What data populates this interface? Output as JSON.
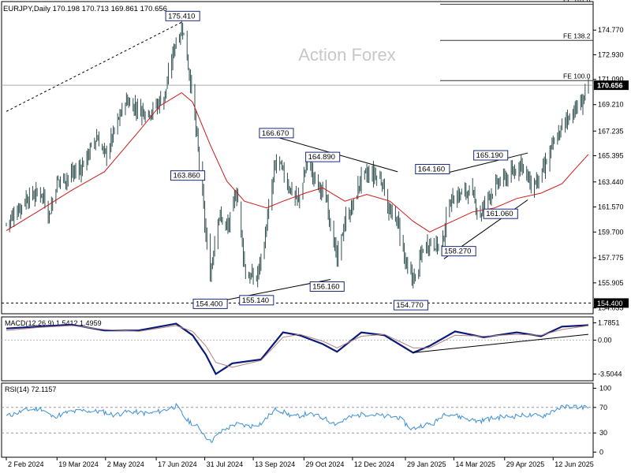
{
  "header": {
    "symbol": "EURJPY,Daily",
    "ohlc": "170.198 170.713 169.861 170.656"
  },
  "watermark": "Action Forex",
  "colors": {
    "candle": "#2f4f4f",
    "ma": "#d01818",
    "trendline": "#000000",
    "macd_line": "#0a1a7a",
    "macd_signal": "#b08080",
    "rsi": "#3b8fd8",
    "grid": "#d0d0d0"
  },
  "chart_data": [
    {
      "type": "candlestick",
      "panel": "price",
      "y_ticks": [
        "174.770",
        "172.930",
        "171.090",
        "169.210",
        "167.235",
        "165.395",
        "163.440",
        "161.570",
        "159.700",
        "157.775",
        "155.905",
        "154.035"
      ],
      "ylim": [
        153.6,
        176.9
      ],
      "last_price_label": "170.656",
      "horizontal_level_label": "154.400",
      "fib_extensions": [
        {
          "label": "FE 161.8",
          "value": 176.7
        },
        {
          "label": "FE 138.2",
          "value": 174.0
        },
        {
          "label": "FE 100.0",
          "value": 171.0
        }
      ],
      "annotations": [
        {
          "label": "175.410",
          "date": "2024-07-11",
          "value": 175.41
        },
        {
          "label": "163.860",
          "date": "2024-07-31",
          "value": 163.86
        },
        {
          "label": "154.400",
          "date": "2024-08-05",
          "value": 154.4
        },
        {
          "label": "155.140",
          "date": "2024-09-16",
          "value": 155.14
        },
        {
          "label": "166.670",
          "date": "2024-10-04",
          "value": 166.67
        },
        {
          "label": "164.890",
          "date": "2024-11-15",
          "value": 164.89
        },
        {
          "label": "156.160",
          "date": "2024-11-19",
          "value": 156.16
        },
        {
          "label": "154.770",
          "date": "2025-02-03",
          "value": 154.77
        },
        {
          "label": "164.160",
          "date": "2025-03-10",
          "value": 164.16
        },
        {
          "label": "158.270",
          "date": "2025-03-03",
          "value": 158.27
        },
        {
          "label": "165.190",
          "date": "2025-04-01",
          "value": 165.19
        },
        {
          "label": "161.060",
          "date": "2025-04-10",
          "value": 161.06
        }
      ],
      "price_path": [
        [
          "2024-02-02",
          160.3
        ],
        [
          "2024-02-20",
          162.2
        ],
        [
          "2024-03-05",
          162.7
        ],
        [
          "2024-03-12",
          161.0
        ],
        [
          "2024-03-19",
          163.5
        ],
        [
          "2024-03-28",
          163.8
        ],
        [
          "2024-04-10",
          164.5
        ],
        [
          "2024-04-24",
          166.8
        ],
        [
          "2024-05-02",
          165.4
        ],
        [
          "2024-05-20",
          169.5
        ],
        [
          "2024-06-03",
          168.8
        ],
        [
          "2024-06-13",
          168.7
        ],
        [
          "2024-06-25",
          170.0
        ],
        [
          "2024-07-04",
          173.8
        ],
        [
          "2024-07-11",
          175.0
        ],
        [
          "2024-07-19",
          170.4
        ],
        [
          "2024-07-26",
          165.0
        ],
        [
          "2024-08-02",
          158.5
        ],
        [
          "2024-08-05",
          156.5
        ],
        [
          "2024-08-12",
          161.0
        ],
        [
          "2024-08-21",
          160.0
        ],
        [
          "2024-08-29",
          162.8
        ],
        [
          "2024-09-06",
          156.5
        ],
        [
          "2024-09-16",
          156.2
        ],
        [
          "2024-09-23",
          159.0
        ],
        [
          "2024-09-30",
          163.0
        ],
        [
          "2024-10-04",
          165.2
        ],
        [
          "2024-10-16",
          163.0
        ],
        [
          "2024-10-24",
          162.0
        ],
        [
          "2024-11-01",
          165.0
        ],
        [
          "2024-11-08",
          163.6
        ],
        [
          "2024-11-19",
          162.0
        ],
        [
          "2024-11-28",
          157.5
        ],
        [
          "2024-12-05",
          160.5
        ],
        [
          "2024-12-13",
          161.8
        ],
        [
          "2024-12-20",
          163.8
        ],
        [
          "2024-12-31",
          164.0
        ],
        [
          "2025-01-08",
          163.5
        ],
        [
          "2025-01-15",
          161.0
        ],
        [
          "2025-01-22",
          160.5
        ],
        [
          "2025-01-31",
          156.6
        ],
        [
          "2025-02-07",
          156.2
        ],
        [
          "2025-02-14",
          158.5
        ],
        [
          "2025-02-21",
          159.0
        ],
        [
          "2025-03-03",
          158.5
        ],
        [
          "2025-03-10",
          162.0
        ],
        [
          "2025-03-19",
          162.5
        ],
        [
          "2025-03-28",
          162.8
        ],
        [
          "2025-04-07",
          161.0
        ],
        [
          "2025-04-15",
          162.5
        ],
        [
          "2025-04-25",
          163.5
        ],
        [
          "2025-05-06",
          164.0
        ],
        [
          "2025-05-14",
          165.0
        ],
        [
          "2025-05-23",
          163.0
        ],
        [
          "2025-06-02",
          164.0
        ],
        [
          "2025-06-11",
          166.0
        ],
        [
          "2025-06-20",
          167.5
        ],
        [
          "2025-06-27",
          168.5
        ],
        [
          "2025-07-07",
          169.2
        ],
        [
          "2025-07-14",
          170.66
        ]
      ],
      "moving_average": [
        [
          "2024-02-02",
          159.8
        ],
        [
          "2024-03-01",
          161.2
        ],
        [
          "2024-04-01",
          162.8
        ],
        [
          "2024-05-01",
          164.2
        ],
        [
          "2024-06-01",
          167.2
        ],
        [
          "2024-06-20",
          169.1
        ],
        [
          "2024-07-10",
          170.1
        ],
        [
          "2024-07-20",
          169.4
        ],
        [
          "2024-08-05",
          166.2
        ],
        [
          "2024-08-20",
          163.5
        ],
        [
          "2024-09-05",
          162.0
        ],
        [
          "2024-09-25",
          161.5
        ],
        [
          "2024-10-10",
          162.0
        ],
        [
          "2024-10-30",
          162.6
        ],
        [
          "2024-11-15",
          163.0
        ],
        [
          "2024-12-05",
          162.0
        ],
        [
          "2024-12-25",
          162.5
        ],
        [
          "2025-01-15",
          162.0
        ],
        [
          "2025-02-05",
          160.5
        ],
        [
          "2025-02-20",
          159.7
        ],
        [
          "2025-03-10",
          160.4
        ],
        [
          "2025-03-31",
          161.2
        ],
        [
          "2025-04-20",
          161.5
        ],
        [
          "2025-05-10",
          162.2
        ],
        [
          "2025-06-01",
          162.6
        ],
        [
          "2025-06-20",
          163.3
        ],
        [
          "2025-07-03",
          164.5
        ],
        [
          "2025-07-14",
          165.5
        ]
      ],
      "trendlines": [
        {
          "style": "dashed",
          "points": [
            [
              "2024-02-02",
              168.7
            ],
            [
              "2024-07-11",
              175.4
            ]
          ]
        },
        {
          "style": "solid",
          "points": [
            [
              "2024-08-05",
              154.4
            ],
            [
              "2024-11-22",
              156.16
            ]
          ]
        },
        {
          "style": "solid",
          "points": [
            [
              "2024-09-25",
              167.0
            ],
            [
              "2025-01-22",
              164.2
            ]
          ]
        },
        {
          "style": "solid",
          "points": [
            [
              "2025-03-10",
              164.16
            ],
            [
              "2025-05-20",
              165.6
            ]
          ]
        },
        {
          "style": "solid",
          "points": [
            [
              "2025-03-05",
              157.7
            ],
            [
              "2025-05-20",
              162.1
            ]
          ]
        }
      ]
    },
    {
      "type": "line",
      "panel": "macd",
      "title": "MACD(12,26,9) 1.5412 1.4959",
      "y_ticks": [
        "1.7851",
        "0.00",
        "-3.5044"
      ],
      "ylim": [
        -4.2,
        2.4
      ],
      "zero": 0,
      "series": [
        {
          "role": "macd",
          "values": [
            [
              "2024-02-02",
              1.2
            ],
            [
              "2024-03-01",
              1.4
            ],
            [
              "2024-04-01",
              1.6
            ],
            [
              "2024-05-01",
              1.0
            ],
            [
              "2024-06-01",
              1.0
            ],
            [
              "2024-07-05",
              1.7
            ],
            [
              "2024-07-20",
              0.5
            ],
            [
              "2024-08-01",
              -1.5
            ],
            [
              "2024-08-10",
              -3.5
            ],
            [
              "2024-08-25",
              -2.4
            ],
            [
              "2024-09-20",
              -2.0
            ],
            [
              "2024-10-10",
              0.8
            ],
            [
              "2024-10-25",
              0.5
            ],
            [
              "2024-11-15",
              -0.4
            ],
            [
              "2024-11-28",
              -1.2
            ],
            [
              "2024-12-20",
              0.8
            ],
            [
              "2025-01-10",
              0.5
            ],
            [
              "2025-02-05",
              -1.3
            ],
            [
              "2025-02-20",
              -0.6
            ],
            [
              "2025-03-15",
              0.9
            ],
            [
              "2025-04-10",
              0.3
            ],
            [
              "2025-05-10",
              0.8
            ],
            [
              "2025-06-01",
              0.4
            ],
            [
              "2025-06-20",
              1.4
            ],
            [
              "2025-07-14",
              1.5412
            ]
          ]
        },
        {
          "role": "signal",
          "values": [
            [
              "2024-02-02",
              1.0
            ],
            [
              "2024-03-01",
              1.3
            ],
            [
              "2024-04-01",
              1.5
            ],
            [
              "2024-05-01",
              1.1
            ],
            [
              "2024-06-01",
              0.9
            ],
            [
              "2024-07-05",
              1.5
            ],
            [
              "2024-07-20",
              0.9
            ],
            [
              "2024-08-01",
              -0.6
            ],
            [
              "2024-08-10",
              -2.3
            ],
            [
              "2024-08-25",
              -2.8
            ],
            [
              "2024-09-20",
              -2.1
            ],
            [
              "2024-10-10",
              0.3
            ],
            [
              "2024-10-25",
              0.6
            ],
            [
              "2024-11-15",
              -0.1
            ],
            [
              "2024-11-28",
              -0.8
            ],
            [
              "2024-12-20",
              0.4
            ],
            [
              "2025-01-10",
              0.6
            ],
            [
              "2025-02-05",
              -0.8
            ],
            [
              "2025-02-20",
              -0.8
            ],
            [
              "2025-03-15",
              0.5
            ],
            [
              "2025-04-10",
              0.4
            ],
            [
              "2025-05-10",
              0.6
            ],
            [
              "2025-06-01",
              0.5
            ],
            [
              "2025-06-20",
              1.1
            ],
            [
              "2025-07-14",
              1.4959
            ]
          ]
        }
      ],
      "trendline": [
        [
          "2025-02-05",
          -1.3
        ],
        [
          "2025-07-14",
          0.6
        ]
      ]
    },
    {
      "type": "line",
      "panel": "rsi",
      "title": "RSI(14) 72.1157",
      "y_ticks": [
        "100",
        "70",
        "30",
        "0"
      ],
      "ylim": [
        -8,
        108
      ],
      "levels": [
        70,
        30
      ],
      "values": [
        [
          "2024-02-02",
          56
        ],
        [
          "2024-02-20",
          66
        ],
        [
          "2024-03-05",
          68
        ],
        [
          "2024-03-15",
          55
        ],
        [
          "2024-03-28",
          62
        ],
        [
          "2024-04-12",
          65
        ],
        [
          "2024-04-30",
          63
        ],
        [
          "2024-05-10",
          58
        ],
        [
          "2024-05-24",
          64
        ],
        [
          "2024-06-10",
          60
        ],
        [
          "2024-06-25",
          66
        ],
        [
          "2024-07-05",
          72
        ],
        [
          "2024-07-15",
          50
        ],
        [
          "2024-07-26",
          38
        ],
        [
          "2024-08-05",
          16
        ],
        [
          "2024-08-15",
          32
        ],
        [
          "2024-08-28",
          44
        ],
        [
          "2024-09-10",
          40
        ],
        [
          "2024-09-20",
          45
        ],
        [
          "2024-10-04",
          68
        ],
        [
          "2024-10-20",
          55
        ],
        [
          "2024-11-01",
          60
        ],
        [
          "2024-11-15",
          54
        ],
        [
          "2024-11-27",
          44
        ],
        [
          "2024-12-12",
          56
        ],
        [
          "2024-12-25",
          60
        ],
        [
          "2025-01-10",
          56
        ],
        [
          "2025-01-22",
          55
        ],
        [
          "2025-02-04",
          36
        ],
        [
          "2025-02-13",
          42
        ],
        [
          "2025-02-24",
          45
        ],
        [
          "2025-03-06",
          62
        ],
        [
          "2025-03-20",
          55
        ],
        [
          "2025-04-05",
          48
        ],
        [
          "2025-04-20",
          54
        ],
        [
          "2025-05-05",
          56
        ],
        [
          "2025-05-20",
          58
        ],
        [
          "2025-06-02",
          56
        ],
        [
          "2025-06-15",
          68
        ],
        [
          "2025-06-27",
          72
        ],
        [
          "2025-07-07",
          70
        ],
        [
          "2025-07-14",
          72.1
        ]
      ]
    }
  ],
  "x_axis": {
    "labels": [
      "2 Feb 2024",
      "19 Mar 2024",
      "2 May 2024",
      "17 Jun 2024",
      "31 Jul 2024",
      "13 Sep 2024",
      "29 Oct 2024",
      "12 Dec 2024",
      "29 Jan 2025",
      "14 Mar 2025",
      "29 Apr 2025",
      "12 Jun 2025"
    ],
    "dates": [
      "2024-02-02",
      "2024-03-19",
      "2024-05-02",
      "2024-06-17",
      "2024-07-31",
      "2024-09-13",
      "2024-10-29",
      "2024-12-12",
      "2025-01-29",
      "2025-03-14",
      "2025-04-29",
      "2025-06-12"
    ],
    "range": [
      "2024-02-02",
      "2025-07-14"
    ]
  }
}
